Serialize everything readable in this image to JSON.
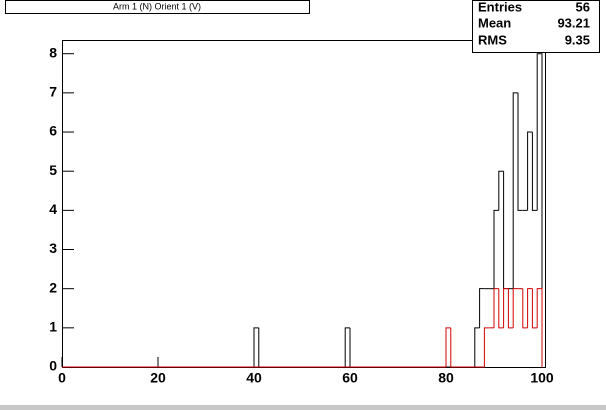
{
  "chart_data": {
    "type": "histogram",
    "title": "Arm 1 (N) Orient 1 (V)",
    "stats": {
      "labels": [
        "Entries",
        "Mean",
        "RMS"
      ],
      "values": [
        56,
        93.21,
        9.35
      ]
    },
    "bins": [
      0,
      1,
      2,
      3,
      4,
      5,
      6,
      7,
      8,
      9,
      10,
      11,
      12,
      13,
      14,
      15,
      16,
      17,
      18,
      19,
      20,
      21,
      22,
      23,
      24,
      25,
      26,
      27,
      28,
      29,
      30,
      31,
      32,
      33,
      34,
      35,
      36,
      37,
      38,
      39,
      40,
      41,
      42,
      43,
      44,
      45,
      46,
      47,
      48,
      49,
      50,
      51,
      52,
      53,
      54,
      55,
      56,
      57,
      58,
      59,
      60,
      61,
      62,
      63,
      64,
      65,
      66,
      67,
      68,
      69,
      70,
      71,
      72,
      73,
      74,
      75,
      76,
      77,
      78,
      79,
      80,
      81,
      82,
      83,
      84,
      85,
      86,
      87,
      88,
      89,
      90,
      91,
      92,
      93,
      94,
      95,
      96,
      97,
      98,
      99,
      100
    ],
    "series": [
      {
        "color": "#000000",
        "values": [
          0,
          0,
          0,
          0,
          0,
          0,
          0,
          0,
          0,
          0,
          0,
          0,
          0,
          0,
          0,
          0,
          0,
          0,
          0,
          0,
          0,
          0,
          0,
          0,
          0,
          0,
          0,
          0,
          0,
          0,
          0,
          0,
          0,
          0,
          0,
          0,
          0,
          0,
          0,
          0,
          1,
          0,
          0,
          0,
          0,
          0,
          0,
          0,
          0,
          0,
          0,
          0,
          0,
          0,
          0,
          0,
          0,
          0,
          0,
          1,
          0,
          0,
          0,
          0,
          0,
          0,
          0,
          0,
          0,
          0,
          0,
          0,
          0,
          0,
          0,
          0,
          0,
          0,
          0,
          0,
          0,
          0,
          0,
          0,
          0,
          0,
          1,
          2,
          2,
          2,
          4,
          5,
          2,
          2,
          7,
          4,
          4,
          6,
          4,
          8
        ]
      },
      {
        "color": "#d40000",
        "values": [
          0,
          0,
          0,
          0,
          0,
          0,
          0,
          0,
          0,
          0,
          0,
          0,
          0,
          0,
          0,
          0,
          0,
          0,
          0,
          0,
          0,
          0,
          0,
          0,
          0,
          0,
          0,
          0,
          0,
          0,
          0,
          0,
          0,
          0,
          0,
          0,
          0,
          0,
          0,
          0,
          0,
          0,
          0,
          0,
          0,
          0,
          0,
          0,
          0,
          0,
          0,
          0,
          0,
          0,
          0,
          0,
          0,
          0,
          0,
          0,
          0,
          0,
          0,
          0,
          0,
          0,
          0,
          0,
          0,
          0,
          0,
          0,
          0,
          0,
          0,
          0,
          0,
          0,
          0,
          0,
          1,
          0,
          0,
          0,
          0,
          0,
          0,
          0,
          1,
          1,
          2,
          1,
          2,
          1,
          2,
          2,
          1,
          2,
          1,
          2
        ]
      }
    ],
    "xlim": [
      0,
      100
    ],
    "xticks": [
      0,
      20,
      40,
      60,
      80,
      100
    ],
    "ylim": [
      0,
      8.35
    ],
    "yticks": [
      0,
      1,
      2,
      3,
      4,
      5,
      6,
      7,
      8
    ]
  }
}
